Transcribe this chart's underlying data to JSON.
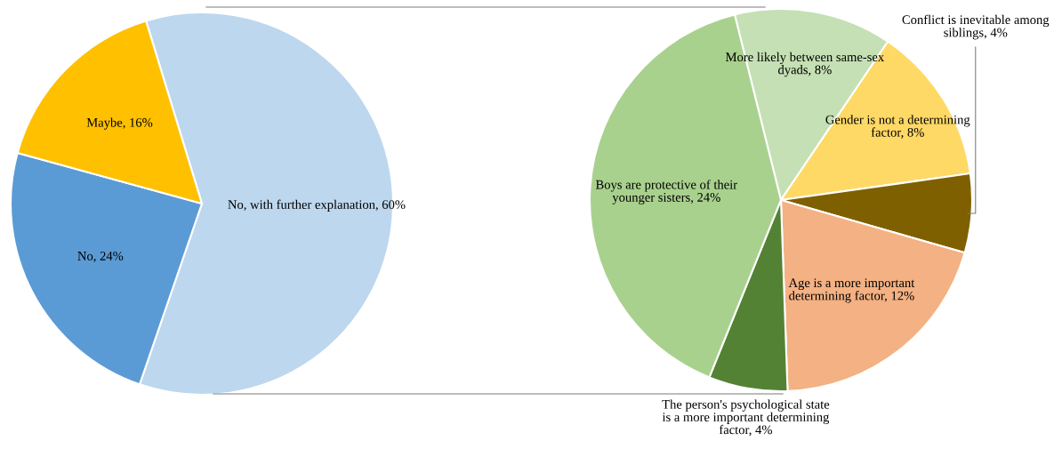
{
  "chart_data": [
    {
      "type": "pie",
      "categories": [
        "No, with further explanation",
        "No",
        "Maybe"
      ],
      "values": [
        60,
        24,
        16
      ],
      "colors": [
        "#bdd7ee",
        "#5b9bd5",
        "#ffc000"
      ],
      "value_labels": [
        "60%",
        "24%",
        "16%"
      ]
    },
    {
      "type": "pie",
      "categories": [
        "More likely between same-sex dyads",
        "Gender is not a determining factor",
        "Conflict is inevitable among siblings",
        "Age is a more important determining factor",
        "The person's psychological state is a more important determining factor",
        "Boys are protective of their younger sisters"
      ],
      "values": [
        8,
        8,
        4,
        12,
        4,
        24
      ],
      "colors": [
        "#c5e0b4",
        "#ffd966",
        "#7f6000",
        "#f4b183",
        "#548235",
        "#a9d18e"
      ],
      "value_labels": [
        "8%",
        "8%",
        "4%",
        "12%",
        "4%",
        "24%"
      ]
    }
  ]
}
